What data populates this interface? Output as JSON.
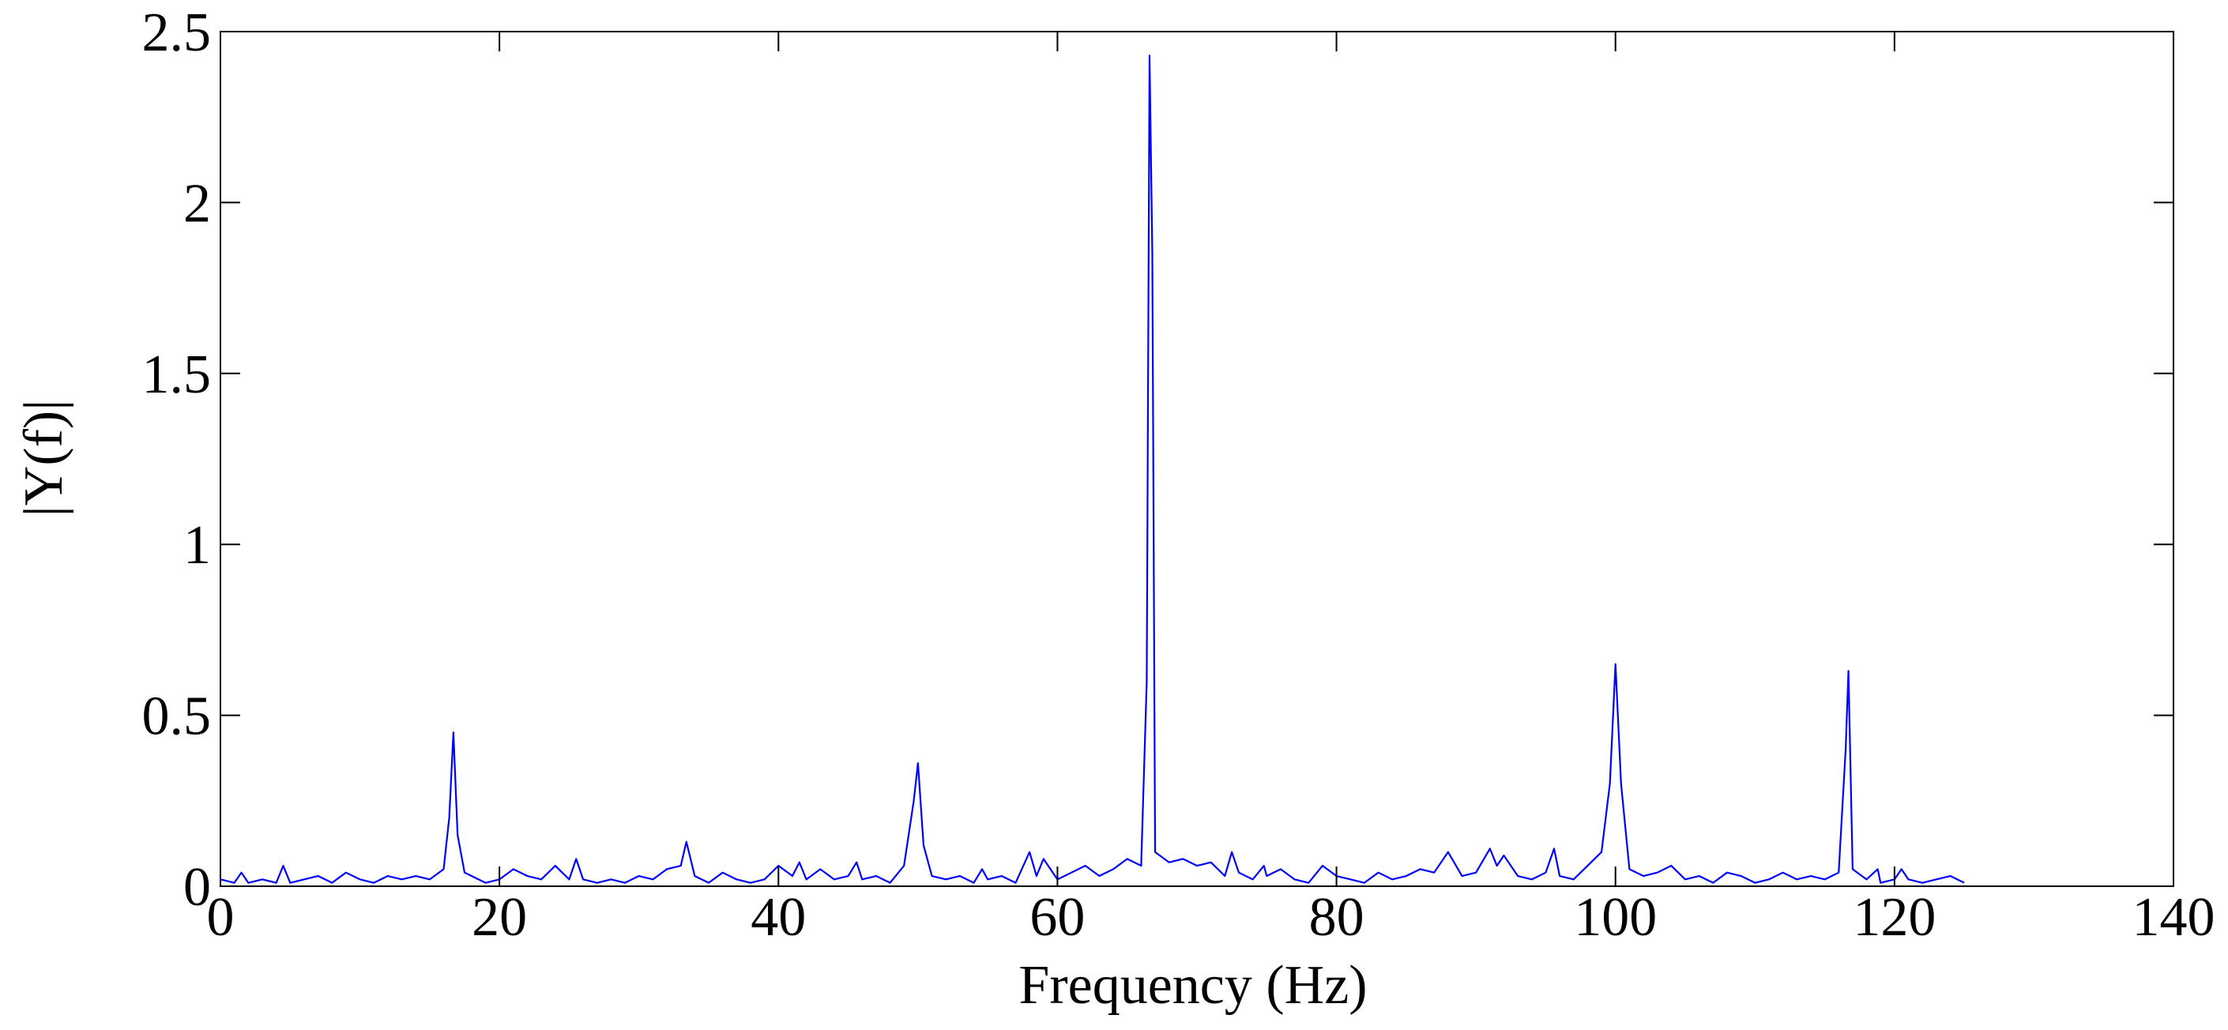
{
  "chart_data": {
    "type": "line",
    "xlabel": "Frequency (Hz)",
    "ylabel": "|Y(f)|",
    "xlim": [
      0,
      140
    ],
    "xticks": [
      0,
      20,
      40,
      60,
      80,
      100,
      120,
      140
    ],
    "ylim": [
      0,
      2.5
    ],
    "yticks": [
      0,
      0.5,
      1,
      1.5,
      2,
      2.5
    ],
    "grid": false,
    "series": [
      {
        "color": "#0000ff",
        "x": [
          0,
          1,
          1.5,
          2,
          3,
          4,
          4.5,
          5,
          6,
          7,
          8,
          9,
          10,
          11,
          12,
          13,
          14,
          15,
          16,
          16.4,
          16.7,
          17,
          17.5,
          18,
          19,
          20,
          21,
          22,
          23,
          24,
          25,
          25.5,
          26,
          27,
          28,
          29,
          30,
          31,
          32,
          33,
          33.4,
          34,
          35,
          36,
          37,
          38,
          39,
          40,
          41,
          41.5,
          42,
          43,
          44,
          45,
          45.6,
          46,
          47,
          48,
          49,
          49.7,
          50,
          50.4,
          51,
          52,
          53,
          54,
          54.6,
          55,
          56,
          57,
          58,
          58.5,
          59,
          60,
          61,
          62,
          63,
          64,
          65,
          66,
          66.4,
          66.6,
          66.8,
          67,
          68,
          69,
          70,
          71,
          72,
          72.5,
          73,
          74,
          74.8,
          75,
          76,
          77,
          78,
          79,
          80,
          81,
          82,
          83,
          84,
          85,
          86,
          87,
          88,
          89,
          90,
          91,
          91.5,
          92,
          93,
          94,
          95,
          95.6,
          96,
          97,
          98,
          99,
          99.6,
          100,
          100.4,
          101,
          102,
          103,
          104,
          105,
          106,
          107,
          108,
          109,
          110,
          111,
          112,
          113,
          114,
          115,
          116,
          116.5,
          116.7,
          117,
          118,
          118.8,
          119,
          120,
          120.5,
          121,
          122,
          123,
          124,
          125
        ],
        "values": [
          0.02,
          0.01,
          0.04,
          0.01,
          0.02,
          0.01,
          0.06,
          0.01,
          0.02,
          0.03,
          0.01,
          0.04,
          0.02,
          0.01,
          0.03,
          0.02,
          0.03,
          0.02,
          0.05,
          0.2,
          0.45,
          0.15,
          0.04,
          0.03,
          0.01,
          0.02,
          0.05,
          0.03,
          0.02,
          0.06,
          0.02,
          0.08,
          0.02,
          0.01,
          0.02,
          0.01,
          0.03,
          0.02,
          0.05,
          0.06,
          0.13,
          0.03,
          0.01,
          0.04,
          0.02,
          0.01,
          0.02,
          0.06,
          0.03,
          0.07,
          0.02,
          0.05,
          0.02,
          0.03,
          0.07,
          0.02,
          0.03,
          0.01,
          0.06,
          0.25,
          0.36,
          0.12,
          0.03,
          0.02,
          0.03,
          0.01,
          0.05,
          0.02,
          0.03,
          0.01,
          0.1,
          0.03,
          0.08,
          0.02,
          0.04,
          0.06,
          0.03,
          0.05,
          0.08,
          0.06,
          0.6,
          2.43,
          1.85,
          0.1,
          0.07,
          0.08,
          0.06,
          0.07,
          0.03,
          0.1,
          0.04,
          0.02,
          0.06,
          0.03,
          0.05,
          0.02,
          0.01,
          0.06,
          0.03,
          0.02,
          0.01,
          0.04,
          0.02,
          0.03,
          0.05,
          0.04,
          0.1,
          0.03,
          0.04,
          0.11,
          0.06,
          0.09,
          0.03,
          0.02,
          0.04,
          0.11,
          0.03,
          0.02,
          0.06,
          0.1,
          0.3,
          0.65,
          0.3,
          0.05,
          0.03,
          0.04,
          0.06,
          0.02,
          0.03,
          0.01,
          0.04,
          0.03,
          0.01,
          0.02,
          0.04,
          0.02,
          0.03,
          0.02,
          0.04,
          0.4,
          0.63,
          0.05,
          0.02,
          0.05,
          0.01,
          0.02,
          0.05,
          0.02,
          0.01,
          0.02,
          0.03,
          0.01
        ]
      }
    ]
  }
}
